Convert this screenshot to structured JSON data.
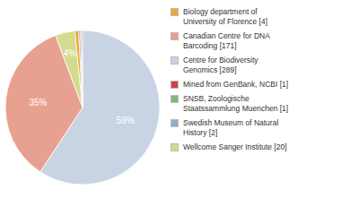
{
  "chart_data": {
    "type": "pie",
    "categories": [
      "Centre for Biodiversity\nGenomics [289]",
      "Canadian Centre for DNA\nBarcoding [171]",
      "Wellcome Sanger Institute [20]",
      "Biology department of\nUniversity of Florence [4]",
      "Swedish Museum of Natural\nHistory [2]",
      "SNSB, Zoologische\nStaatssammlung Muenchen [1]",
      "Mined from GenBank, NCBI [1]"
    ],
    "values": [
      59.2,
      35.0,
      4.1,
      0.8,
      0.4,
      0.2,
      0.2
    ],
    "value_labels": [
      "59%",
      "35%",
      "4%",
      null,
      null,
      null,
      null
    ],
    "colors": [
      "#c8d4e3",
      "#e8a090",
      "#d4db8c",
      "#f0a830",
      "#8ab0d0",
      "#7db87d",
      "#d44040"
    ],
    "legend": "right",
    "data_labels": true
  }
}
